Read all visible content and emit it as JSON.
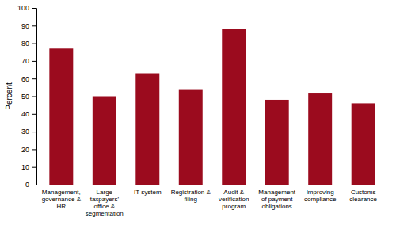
{
  "chart_data": {
    "type": "bar",
    "categories": [
      "Management,\ngovernance &\nHR",
      "Large\ntaxpayers'\noffice &\nsegmentation",
      "IT system",
      "Registration &\nfiling",
      "Audit &\nverification\nprogram",
      "Management\nof payment\nobligations",
      "Improving\ncompliance",
      "Customs\nclearance"
    ],
    "values": [
      77,
      50,
      63,
      54,
      88,
      48,
      52,
      46
    ],
    "color": "#9B0B1E",
    "ylabel": "Percent",
    "ylim": [
      0,
      100
    ],
    "yticks": [
      0,
      10,
      20,
      30,
      40,
      50,
      60,
      70,
      80,
      90,
      100
    ],
    "grid": false
  }
}
